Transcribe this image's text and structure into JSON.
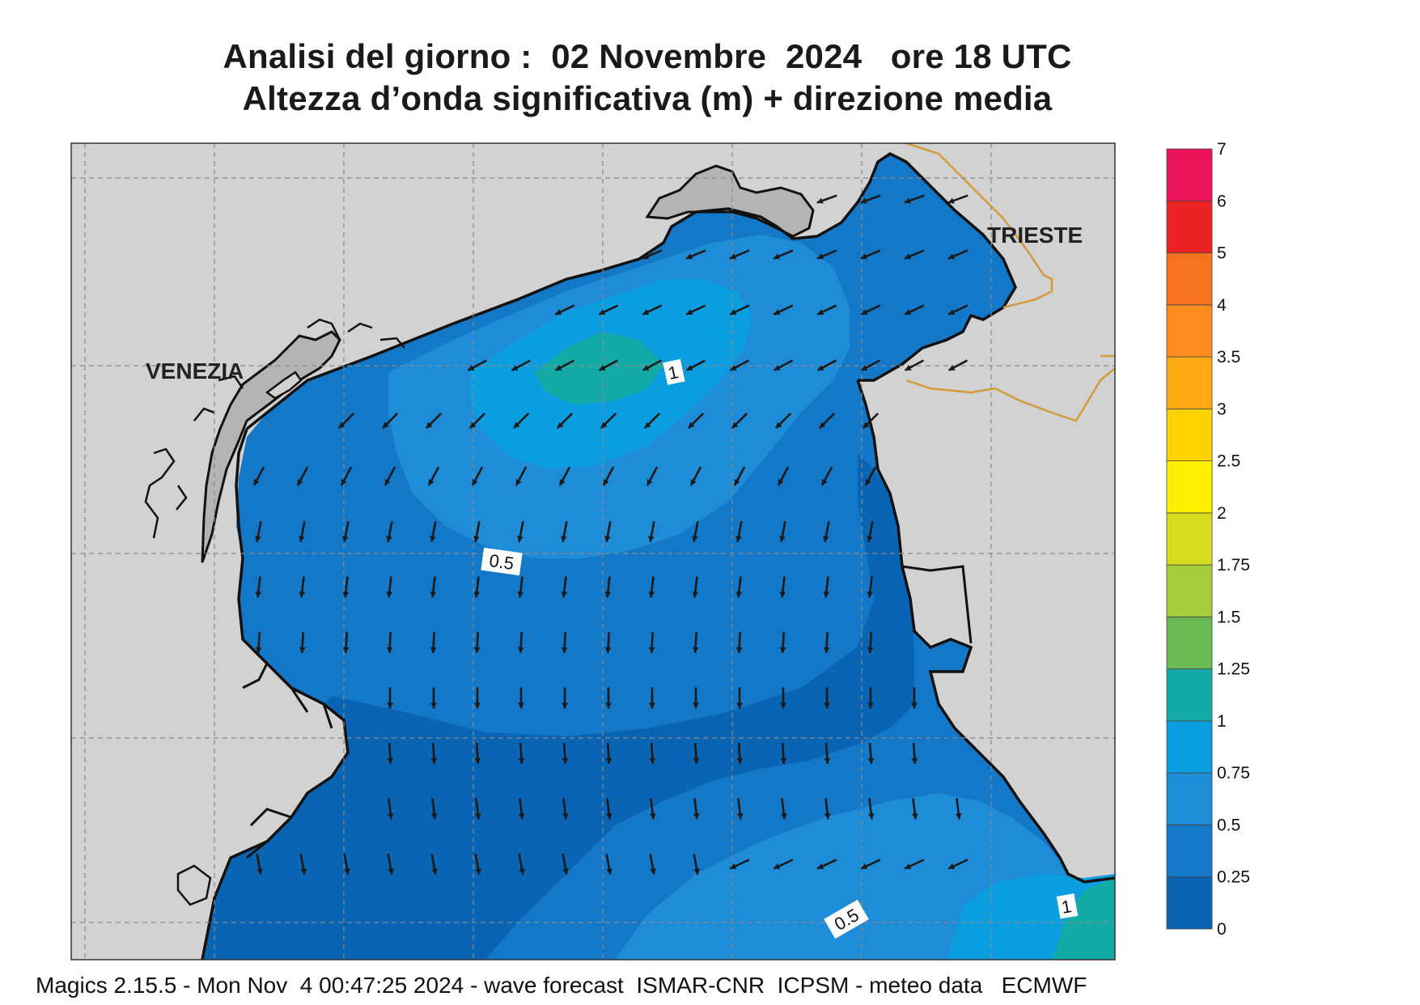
{
  "title_line1": "Analisi del giorno :  02 Novembre  2024   ore 18 UTC",
  "title_line2": "Altezza d’onda significativa (m) + direzione media",
  "footer": "Magics 2.15.5 - Mon Nov  4 00:47:25 2024 - wave forecast  ISMAR-CNR  ICPSM - meteo data   ECMWF",
  "cities": {
    "venezia": "VENEZIA",
    "trieste": "TRIESTE"
  },
  "contour_labels": {
    "c1_top": "1",
    "c05_mid": "0.5",
    "c05_bottom": "0.5",
    "c1_bottom": "1"
  },
  "colorbar": {
    "labels": [
      "0",
      "0.25",
      "0.5",
      "0.75",
      "1",
      "1.25",
      "1.5",
      "1.75",
      "2",
      "2.5",
      "3",
      "3.5",
      "4",
      "5",
      "6",
      "7"
    ],
    "colors": [
      "#0a64b4",
      "#1478c8",
      "#1e8cd7",
      "#0a9ee1",
      "#14aaa5",
      "#69b955",
      "#a5cd3c",
      "#d7dc1e",
      "#fff000",
      "#ffd200",
      "#ffaa14",
      "#ff8c1e",
      "#f5731e",
      "#eb2323",
      "#eb145a"
    ]
  },
  "colors": {
    "land": "#d2d2d2",
    "land_fill_light": "#c6c6c6",
    "sea_025": "#0a64b4",
    "sea_05": "#1478c8",
    "sea_075": "#1e8cd7",
    "sea_1": "#0a9ee1",
    "sea_125": "#14aaa5",
    "border": "#d29b3c",
    "coast": "#111111"
  }
}
